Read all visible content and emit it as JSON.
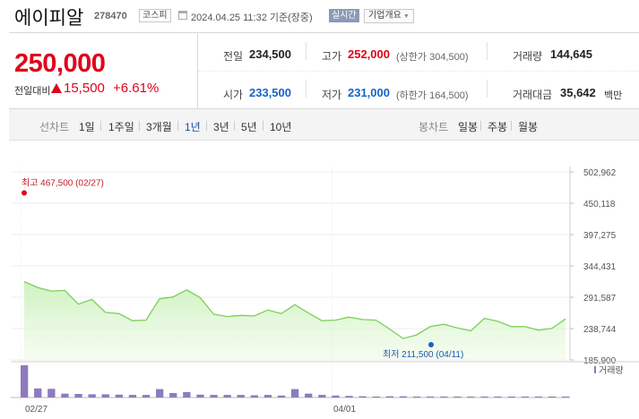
{
  "header": {
    "name": "에이피알",
    "code": "278470",
    "market": "코스피",
    "timestamp": "2024.04.25 11:32 기준(장중)",
    "realtime": "실시간",
    "company_info": "기업개요"
  },
  "quote": {
    "price": "250,000",
    "change_label": "전일대비",
    "change_value": "15,500",
    "change_pct": "+6.61%",
    "prev_close_label": "전일",
    "prev_close": "234,500",
    "high_label": "고가",
    "high": "252,000",
    "upper_limit": "(상한가 304,500)",
    "volume_label": "거래량",
    "volume": "144,645",
    "open_label": "시가",
    "open": "233,500",
    "low_label": "저가",
    "low": "231,000",
    "lower_limit": "(하한가 164,500)",
    "turnover_label": "거래대금",
    "turnover": "35,642",
    "turnover_unit": "백만"
  },
  "tabs": {
    "line_label": "선차트",
    "line": [
      "1일",
      "1주일",
      "3개월",
      "1년",
      "3년",
      "5년",
      "10년"
    ],
    "active_line": "1년",
    "candle_label": "봉차트",
    "candle": [
      "일봉",
      "주봉",
      "월봉"
    ]
  },
  "chart_data": {
    "type": "area",
    "y_ticks": [
      "502,962",
      "450,118",
      "397,275",
      "344,431",
      "291,587",
      "238,744",
      "185,900"
    ],
    "ylim": [
      185900,
      502962
    ],
    "x_tick_labels": [
      "02/27",
      "04/01"
    ],
    "high_annotation": "최고 467,500 (02/27)",
    "low_annotation": "최저 211,500 (04/11)",
    "high": 467500,
    "low": 211500,
    "line_color": "#7ccf5a",
    "high_color": "#e0001a",
    "low_color": "#1464c8",
    "volume_color": "#8c7bbf",
    "volume_label": "거래량",
    "prices": [
      318000,
      308000,
      302000,
      303000,
      280000,
      288000,
      266000,
      264000,
      252000,
      253000,
      289000,
      292000,
      304000,
      291000,
      263000,
      259000,
      261000,
      260000,
      270000,
      264000,
      279000,
      265000,
      252000,
      253000,
      258000,
      254000,
      253000,
      238000,
      222000,
      228000,
      242000,
      246000,
      240000,
      235000,
      256000,
      251000,
      242000,
      242000,
      236000,
      239000,
      255000
    ],
    "volumes": [
      100,
      28,
      27,
      12,
      11,
      10,
      10,
      9,
      8,
      8,
      26,
      14,
      17,
      9,
      8,
      8,
      8,
      7,
      8,
      6,
      26,
      12,
      8,
      6,
      5,
      4,
      3,
      4,
      4,
      3,
      3,
      3,
      3,
      3,
      3,
      3,
      3,
      3,
      3,
      3,
      3
    ]
  }
}
